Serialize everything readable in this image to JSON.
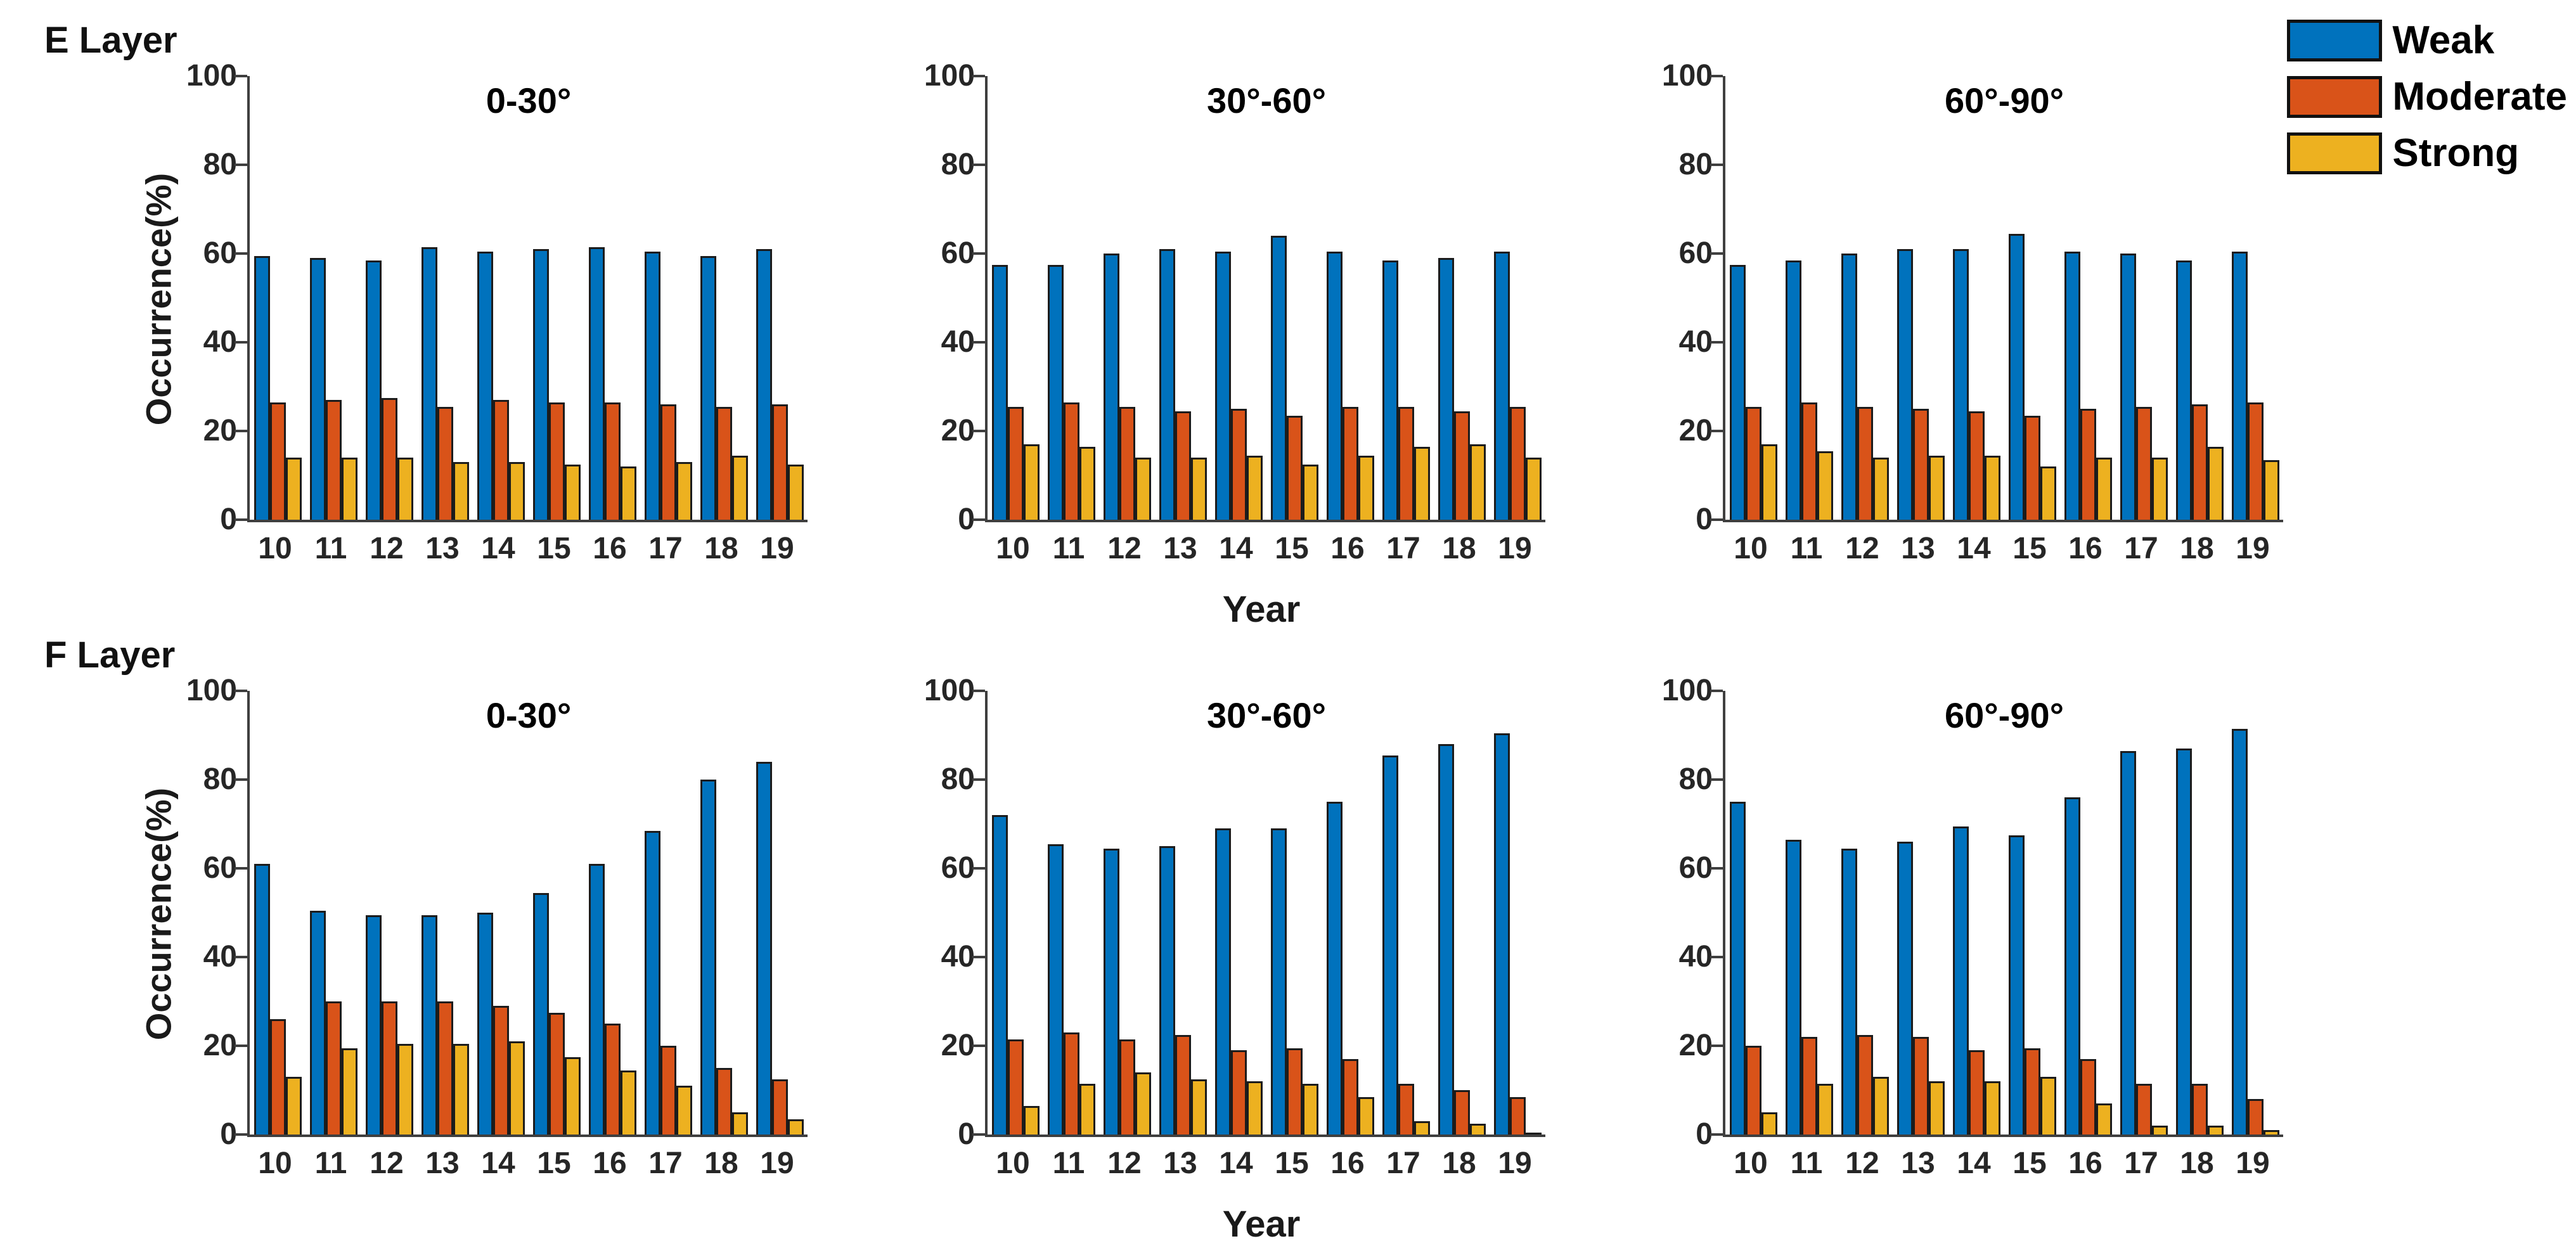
{
  "figure": {
    "row_labels": [
      "E Layer",
      "F Layer"
    ],
    "ylabel": "Occurrence(%)",
    "xlabel": "Year",
    "legend": [
      {
        "label": "Weak",
        "color": "#0072BD"
      },
      {
        "label": "Moderate",
        "color": "#D95319"
      },
      {
        "label": "Strong",
        "color": "#EDB120"
      }
    ]
  },
  "chart_data": [
    {
      "type": "bar",
      "row": "E Layer",
      "title": "0-30°",
      "categories": [
        "10",
        "11",
        "12",
        "13",
        "14",
        "15",
        "16",
        "17",
        "18",
        "19"
      ],
      "xlabel": "Year",
      "ylabel": "Occurrence(%)",
      "ylim": [
        0,
        100
      ],
      "yticks": [
        0,
        20,
        40,
        60,
        80,
        100
      ],
      "series": [
        {
          "name": "Weak",
          "values": [
            59.5,
            59,
            58.5,
            61.5,
            60.5,
            61,
            61.5,
            60.5,
            59.5,
            61
          ]
        },
        {
          "name": "Moderate",
          "values": [
            26.5,
            27,
            27.5,
            25.5,
            27,
            26.5,
            26.5,
            26,
            25.5,
            26
          ]
        },
        {
          "name": "Strong",
          "values": [
            14,
            14,
            14,
            13,
            13,
            12.5,
            12,
            13,
            14.5,
            12.5
          ]
        }
      ]
    },
    {
      "type": "bar",
      "row": "E Layer",
      "title": "30°-60°",
      "categories": [
        "10",
        "11",
        "12",
        "13",
        "14",
        "15",
        "16",
        "17",
        "18",
        "19"
      ],
      "xlabel": "Year",
      "ylabel": "Occurrence(%)",
      "ylim": [
        0,
        100
      ],
      "yticks": [
        0,
        20,
        40,
        60,
        80,
        100
      ],
      "series": [
        {
          "name": "Weak",
          "values": [
            57.5,
            57.5,
            60,
            61,
            60.5,
            64,
            60.5,
            58.5,
            59,
            60.5
          ]
        },
        {
          "name": "Moderate",
          "values": [
            25.5,
            26.5,
            25.5,
            24.5,
            25,
            23.5,
            25.5,
            25.5,
            24.5,
            25.5
          ]
        },
        {
          "name": "Strong",
          "values": [
            17,
            16.5,
            14,
            14,
            14.5,
            12.5,
            14.5,
            16.5,
            17,
            14
          ]
        }
      ]
    },
    {
      "type": "bar",
      "row": "E Layer",
      "title": "60°-90°",
      "categories": [
        "10",
        "11",
        "12",
        "13",
        "14",
        "15",
        "16",
        "17",
        "18",
        "19"
      ],
      "xlabel": "Year",
      "ylabel": "Occurrence(%)",
      "ylim": [
        0,
        100
      ],
      "yticks": [
        0,
        20,
        40,
        60,
        80,
        100
      ],
      "series": [
        {
          "name": "Weak",
          "values": [
            57.5,
            58.5,
            60,
            61,
            61,
            64.5,
            60.5,
            60,
            58.5,
            60.5
          ]
        },
        {
          "name": "Moderate",
          "values": [
            25.5,
            26.5,
            25.5,
            25,
            24.5,
            23.5,
            25,
            25.5,
            26,
            26.5
          ]
        },
        {
          "name": "Strong",
          "values": [
            17,
            15.5,
            14,
            14.5,
            14.5,
            12,
            14,
            14,
            16.5,
            13.5
          ]
        }
      ]
    },
    {
      "type": "bar",
      "row": "F Layer",
      "title": "0-30°",
      "categories": [
        "10",
        "11",
        "12",
        "13",
        "14",
        "15",
        "16",
        "17",
        "18",
        "19"
      ],
      "xlabel": "Year",
      "ylabel": "Occurrence(%)",
      "ylim": [
        0,
        100
      ],
      "yticks": [
        0,
        20,
        40,
        60,
        80,
        100
      ],
      "series": [
        {
          "name": "Weak",
          "values": [
            61,
            50.5,
            49.5,
            49.5,
            50,
            54.5,
            61,
            68.5,
            80,
            84
          ]
        },
        {
          "name": "Moderate",
          "values": [
            26,
            30,
            30,
            30,
            29,
            27.5,
            25,
            20,
            15,
            12.5
          ]
        },
        {
          "name": "Strong",
          "values": [
            13,
            19.5,
            20.5,
            20.5,
            21,
            17.5,
            14.5,
            11,
            5,
            3.5
          ]
        }
      ]
    },
    {
      "type": "bar",
      "row": "F Layer",
      "title": "30°-60°",
      "categories": [
        "10",
        "11",
        "12",
        "13",
        "14",
        "15",
        "16",
        "17",
        "18",
        "19"
      ],
      "xlabel": "Year",
      "ylabel": "Occurrence(%)",
      "ylim": [
        0,
        100
      ],
      "yticks": [
        0,
        20,
        40,
        60,
        80,
        100
      ],
      "series": [
        {
          "name": "Weak",
          "values": [
            72,
            65.5,
            64.5,
            65,
            69,
            69,
            75,
            85.5,
            88,
            90.5
          ]
        },
        {
          "name": "Moderate",
          "values": [
            21.5,
            23,
            21.5,
            22.5,
            19,
            19.5,
            17,
            11.5,
            10,
            8.5
          ]
        },
        {
          "name": "Strong",
          "values": [
            6.5,
            11.5,
            14,
            12.5,
            12,
            11.5,
            8.5,
            3,
            2.5,
            0.5
          ]
        }
      ]
    },
    {
      "type": "bar",
      "row": "F Layer",
      "title": "60°-90°",
      "categories": [
        "10",
        "11",
        "12",
        "13",
        "14",
        "15",
        "16",
        "17",
        "18",
        "19"
      ],
      "xlabel": "Year",
      "ylabel": "Occurrence(%)",
      "ylim": [
        0,
        100
      ],
      "yticks": [
        0,
        20,
        40,
        60,
        80,
        100
      ],
      "series": [
        {
          "name": "Weak",
          "values": [
            75,
            66.5,
            64.5,
            66,
            69.5,
            67.5,
            76,
            86.5,
            87,
            91.5
          ]
        },
        {
          "name": "Moderate",
          "values": [
            20,
            22,
            22.5,
            22,
            19,
            19.5,
            17,
            11.5,
            11.5,
            8
          ]
        },
        {
          "name": "Strong",
          "values": [
            5,
            11.5,
            13,
            12,
            12,
            13,
            7,
            2,
            2,
            1
          ]
        }
      ]
    }
  ]
}
